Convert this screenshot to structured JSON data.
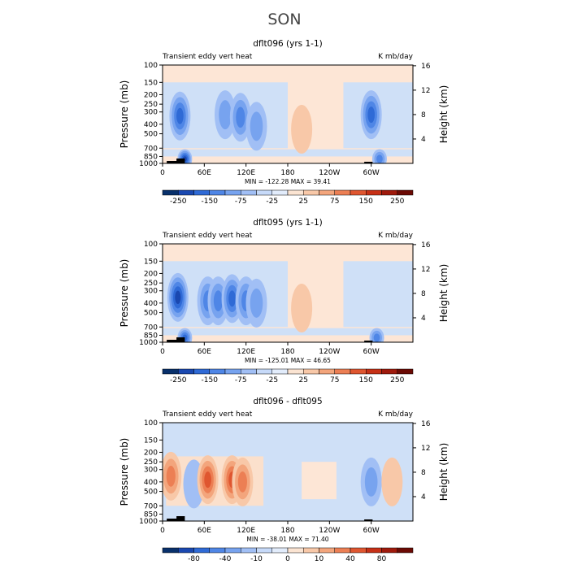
{
  "figure_title": "SON",
  "chart_data": [
    {
      "type": "heatmap",
      "title": "dflt096 (yrs 1-1)",
      "left_label": "Transient eddy vert heat",
      "right_label": "K mb/day",
      "ylabel": "Pressure (mb)",
      "ylabel_right": "Height (km)",
      "y_ticks": [
        "100",
        "150",
        "200",
        "250",
        "300",
        "400",
        "500",
        "700",
        "850",
        "1000"
      ],
      "y_right_ticks": [
        "16",
        "12",
        "8",
        "4"
      ],
      "x_ticks": [
        "0",
        "60E",
        "120E",
        "180",
        "120W",
        "60W"
      ],
      "stats": "MIN = -122.28   MAX =  39.41",
      "colorbar": {
        "colors": [
          "#08306b",
          "#1a48b0",
          "#2f6ad6",
          "#4f86e6",
          "#77a3ef",
          "#a1bff5",
          "#c7daf9",
          "#e2ecfb",
          "#fbe4d2",
          "#f8c8a8",
          "#f3a57c",
          "#ec7f54",
          "#df5630",
          "#c63016",
          "#9f1a0c",
          "#6b0a04"
        ],
        "labels": [
          "-250",
          "-150",
          "-75",
          "-25",
          "25",
          "75",
          "150",
          "250"
        ]
      },
      "features": [
        {
          "lon": 25,
          "p": 330,
          "value": -100
        },
        {
          "lon": 32,
          "p": 900,
          "value": -110
        },
        {
          "lon": 90,
          "p": 320,
          "value": -50
        },
        {
          "lon": 112,
          "p": 340,
          "value": -70
        },
        {
          "lon": 135,
          "p": 420,
          "value": -40
        },
        {
          "lon": 300,
          "p": 320,
          "value": -90
        },
        {
          "lon": 312,
          "p": 900,
          "value": -80
        },
        {
          "lon": 200,
          "p": 450,
          "value": 20
        }
      ]
    },
    {
      "type": "heatmap",
      "title": "dflt095 (yrs 1-1)",
      "left_label": "Transient eddy vert heat",
      "right_label": "K mb/day",
      "ylabel": "Pressure (mb)",
      "ylabel_right": "Height (km)",
      "y_ticks": [
        "100",
        "150",
        "200",
        "250",
        "300",
        "400",
        "500",
        "700",
        "850",
        "1000"
      ],
      "y_right_ticks": [
        "16",
        "12",
        "8",
        "4"
      ],
      "x_ticks": [
        "0",
        "60E",
        "120E",
        "180",
        "120W",
        "60W"
      ],
      "stats": "MIN = -125.01   MAX =  46.65",
      "colorbar": {
        "colors": [
          "#08306b",
          "#1a48b0",
          "#2f6ad6",
          "#4f86e6",
          "#77a3ef",
          "#a1bff5",
          "#c7daf9",
          "#e2ecfb",
          "#fbe4d2",
          "#f8c8a8",
          "#f3a57c",
          "#ec7f54",
          "#df5630",
          "#c63016",
          "#9f1a0c",
          "#6b0a04"
        ],
        "labels": [
          "-250",
          "-150",
          "-75",
          "-25",
          "25",
          "75",
          "150",
          "250"
        ]
      },
      "features": [
        {
          "lon": 22,
          "p": 350,
          "value": -110
        },
        {
          "lon": 32,
          "p": 900,
          "value": -100
        },
        {
          "lon": 65,
          "p": 380,
          "value": -60
        },
        {
          "lon": 80,
          "p": 380,
          "value": -70
        },
        {
          "lon": 100,
          "p": 360,
          "value": -90
        },
        {
          "lon": 120,
          "p": 380,
          "value": -80
        },
        {
          "lon": 135,
          "p": 400,
          "value": -50
        },
        {
          "lon": 308,
          "p": 900,
          "value": -60
        },
        {
          "lon": 200,
          "p": 450,
          "value": 25
        }
      ]
    },
    {
      "type": "heatmap",
      "title": "dflt096 - dflt095",
      "left_label": "Transient eddy vert heat",
      "right_label": "K mb/day",
      "ylabel": "Pressure (mb)",
      "ylabel_right": "Height (km)",
      "y_ticks": [
        "100",
        "150",
        "200",
        "250",
        "300",
        "400",
        "500",
        "700",
        "850",
        "1000"
      ],
      "y_right_ticks": [
        "16",
        "12",
        "8",
        "4"
      ],
      "x_ticks": [
        "0",
        "60E",
        "120E",
        "180",
        "120W",
        "60W"
      ],
      "stats": "MIN = -38.01   MAX =  71.40",
      "colorbar": {
        "colors": [
          "#08306b",
          "#1a48b0",
          "#2f6ad6",
          "#4f86e6",
          "#77a3ef",
          "#a1bff5",
          "#c7daf9",
          "#e2ecfb",
          "#fbe4d2",
          "#f8c8a8",
          "#f3a57c",
          "#ec7f54",
          "#df5630",
          "#c63016",
          "#9f1a0c",
          "#6b0a04"
        ],
        "labels": [
          "-80",
          "-40",
          "-10",
          "0",
          "10",
          "40",
          "80"
        ]
      },
      "features": [
        {
          "lon": 12,
          "p": 350,
          "value": 35
        },
        {
          "lon": 45,
          "p": 420,
          "value": -20
        },
        {
          "lon": 65,
          "p": 380,
          "value": 50
        },
        {
          "lon": 100,
          "p": 380,
          "value": 60
        },
        {
          "lon": 115,
          "p": 400,
          "value": 45
        },
        {
          "lon": 300,
          "p": 400,
          "value": -25
        },
        {
          "lon": 330,
          "p": 400,
          "value": 20
        }
      ]
    }
  ]
}
